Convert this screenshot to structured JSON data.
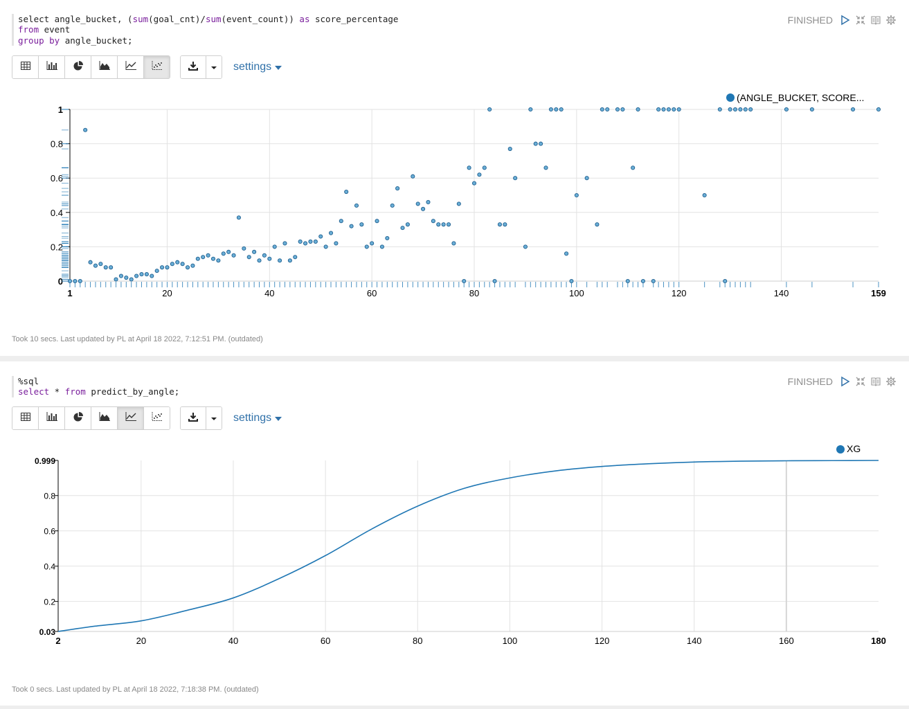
{
  "colors": {
    "series": "#1f77b4",
    "link": "#3071a9",
    "status": "#8e8e8e"
  },
  "paragraph1": {
    "code": {
      "line1": [
        "select angle_bucket, (",
        "sum",
        "(goal_cnt)/",
        "sum",
        "(event_count)) ",
        "as",
        " score_percentage"
      ],
      "line2": [
        "from",
        " event"
      ],
      "line3": [
        "group by",
        " angle_bucket;"
      ]
    },
    "status": "FINISHED",
    "toolbar": {
      "buttons": [
        "table-icon",
        "bar-chart-icon",
        "pie-chart-icon",
        "area-chart-icon",
        "line-chart-icon",
        "scatter-chart-icon"
      ],
      "active": "scatter-chart-icon",
      "settings_label": "settings"
    },
    "footer": "Took 10 secs. Last updated by PL at April 18 2022, 7:12:51 PM. (outdated)"
  },
  "paragraph2": {
    "code": {
      "line1": [
        "%sql"
      ],
      "line2": [
        "select",
        " * ",
        "from",
        " predict_by_angle;"
      ]
    },
    "status": "FINISHED",
    "toolbar": {
      "buttons": [
        "table-icon",
        "bar-chart-icon",
        "pie-chart-icon",
        "area-chart-icon",
        "line-chart-icon",
        "scatter-chart-icon"
      ],
      "active": "line-chart-icon",
      "settings_label": "settings"
    },
    "footer": "Took 0 secs. Last updated by PL at April 18 2022, 7:18:38 PM. (outdated)"
  },
  "chart_data": [
    {
      "type": "scatter",
      "legend": "(ANGLE_BUCKET, SCORE...",
      "legend_position": "top-right",
      "xlim": [
        1,
        159
      ],
      "ylim": [
        0,
        1
      ],
      "x_ticks": [
        "1",
        "20",
        "40",
        "60",
        "80",
        "100",
        "120",
        "140",
        "159"
      ],
      "y_ticks": [
        "0",
        "0.2",
        "0.4",
        "0.6",
        "0.8",
        "1"
      ],
      "grid": true,
      "rug": true,
      "points": [
        [
          1,
          0
        ],
        [
          2,
          0
        ],
        [
          3,
          0
        ],
        [
          4,
          0.88
        ],
        [
          5,
          0.11
        ],
        [
          6,
          0.09
        ],
        [
          7,
          0.1
        ],
        [
          8,
          0.08
        ],
        [
          9,
          0.08
        ],
        [
          10,
          0.01
        ],
        [
          11,
          0.03
        ],
        [
          12,
          0.02
        ],
        [
          13,
          0.01
        ],
        [
          14,
          0.03
        ],
        [
          15,
          0.04
        ],
        [
          16,
          0.04
        ],
        [
          17,
          0.03
        ],
        [
          18,
          0.06
        ],
        [
          19,
          0.08
        ],
        [
          20,
          0.08
        ],
        [
          21,
          0.1
        ],
        [
          22,
          0.11
        ],
        [
          23,
          0.1
        ],
        [
          24,
          0.08
        ],
        [
          25,
          0.09
        ],
        [
          26,
          0.13
        ],
        [
          27,
          0.14
        ],
        [
          28,
          0.15
        ],
        [
          29,
          0.13
        ],
        [
          30,
          0.12
        ],
        [
          31,
          0.16
        ],
        [
          32,
          0.17
        ],
        [
          33,
          0.15
        ],
        [
          34,
          0.37
        ],
        [
          35,
          0.19
        ],
        [
          36,
          0.14
        ],
        [
          37,
          0.17
        ],
        [
          38,
          0.12
        ],
        [
          39,
          0.15
        ],
        [
          40,
          0.13
        ],
        [
          41,
          0.2
        ],
        [
          42,
          0.12
        ],
        [
          43,
          0.22
        ],
        [
          44,
          0.12
        ],
        [
          45,
          0.14
        ],
        [
          46,
          0.23
        ],
        [
          47,
          0.22
        ],
        [
          48,
          0.23
        ],
        [
          49,
          0.23
        ],
        [
          50,
          0.26
        ],
        [
          51,
          0.2
        ],
        [
          52,
          0.28
        ],
        [
          53,
          0.22
        ],
        [
          54,
          0.35
        ],
        [
          55,
          0.52
        ],
        [
          56,
          0.32
        ],
        [
          57,
          0.44
        ],
        [
          58,
          0.33
        ],
        [
          59,
          0.2
        ],
        [
          60,
          0.22
        ],
        [
          61,
          0.35
        ],
        [
          62,
          0.2
        ],
        [
          63,
          0.25
        ],
        [
          64,
          0.44
        ],
        [
          65,
          0.54
        ],
        [
          66,
          0.31
        ],
        [
          67,
          0.33
        ],
        [
          68,
          0.61
        ],
        [
          69,
          0.45
        ],
        [
          70,
          0.42
        ],
        [
          71,
          0.46
        ],
        [
          72,
          0.35
        ],
        [
          73,
          0.33
        ],
        [
          74,
          0.33
        ],
        [
          75,
          0.33
        ],
        [
          76,
          0.22
        ],
        [
          77,
          0.45
        ],
        [
          78,
          0
        ],
        [
          79,
          0.66
        ],
        [
          80,
          0.57
        ],
        [
          81,
          0.62
        ],
        [
          82,
          0.66
        ],
        [
          83,
          1
        ],
        [
          84,
          0
        ],
        [
          85,
          0.33
        ],
        [
          86,
          0.33
        ],
        [
          87,
          0.77
        ],
        [
          88,
          0.6
        ],
        [
          90,
          0.2
        ],
        [
          91,
          1
        ],
        [
          92,
          0.8
        ],
        [
          93,
          0.8
        ],
        [
          94,
          0.66
        ],
        [
          95,
          1
        ],
        [
          96,
          1
        ],
        [
          97,
          1
        ],
        [
          98,
          0.16
        ],
        [
          99,
          0
        ],
        [
          100,
          0.5
        ],
        [
          102,
          0.6
        ],
        [
          104,
          0.33
        ],
        [
          105,
          1
        ],
        [
          106,
          1
        ],
        [
          108,
          1
        ],
        [
          109,
          1
        ],
        [
          110,
          0
        ],
        [
          111,
          0.66
        ],
        [
          112,
          1
        ],
        [
          113,
          0
        ],
        [
          115,
          0
        ],
        [
          116,
          1
        ],
        [
          117,
          1
        ],
        [
          118,
          1
        ],
        [
          119,
          1
        ],
        [
          120,
          1
        ],
        [
          125,
          0.5
        ],
        [
          128,
          1
        ],
        [
          129,
          0
        ],
        [
          130,
          1
        ],
        [
          131,
          1
        ],
        [
          132,
          1
        ],
        [
          133,
          1
        ],
        [
          134,
          1
        ],
        [
          141,
          1
        ],
        [
          146,
          1
        ],
        [
          154,
          1
        ],
        [
          159,
          1
        ]
      ]
    },
    {
      "type": "line",
      "legend": "XG",
      "legend_position": "top-right",
      "xlim": [
        2,
        180
      ],
      "ylim": [
        0.03,
        0.999
      ],
      "x_ticks": [
        "2",
        "20",
        "40",
        "60",
        "80",
        "100",
        "120",
        "140",
        "160",
        "180"
      ],
      "y_ticks": [
        "0.03",
        "0.2",
        "0.4",
        "0.6",
        "0.8",
        "0.999"
      ],
      "grid": true,
      "series": [
        {
          "x": [
            2,
            10,
            20,
            30,
            40,
            50,
            60,
            70,
            80,
            90,
            100,
            110,
            120,
            130,
            140,
            150,
            160,
            170,
            180
          ],
          "values": [
            0.03,
            0.06,
            0.09,
            0.15,
            0.22,
            0.33,
            0.46,
            0.61,
            0.74,
            0.84,
            0.9,
            0.94,
            0.965,
            0.98,
            0.99,
            0.995,
            0.997,
            0.998,
            0.999
          ]
        }
      ]
    }
  ]
}
